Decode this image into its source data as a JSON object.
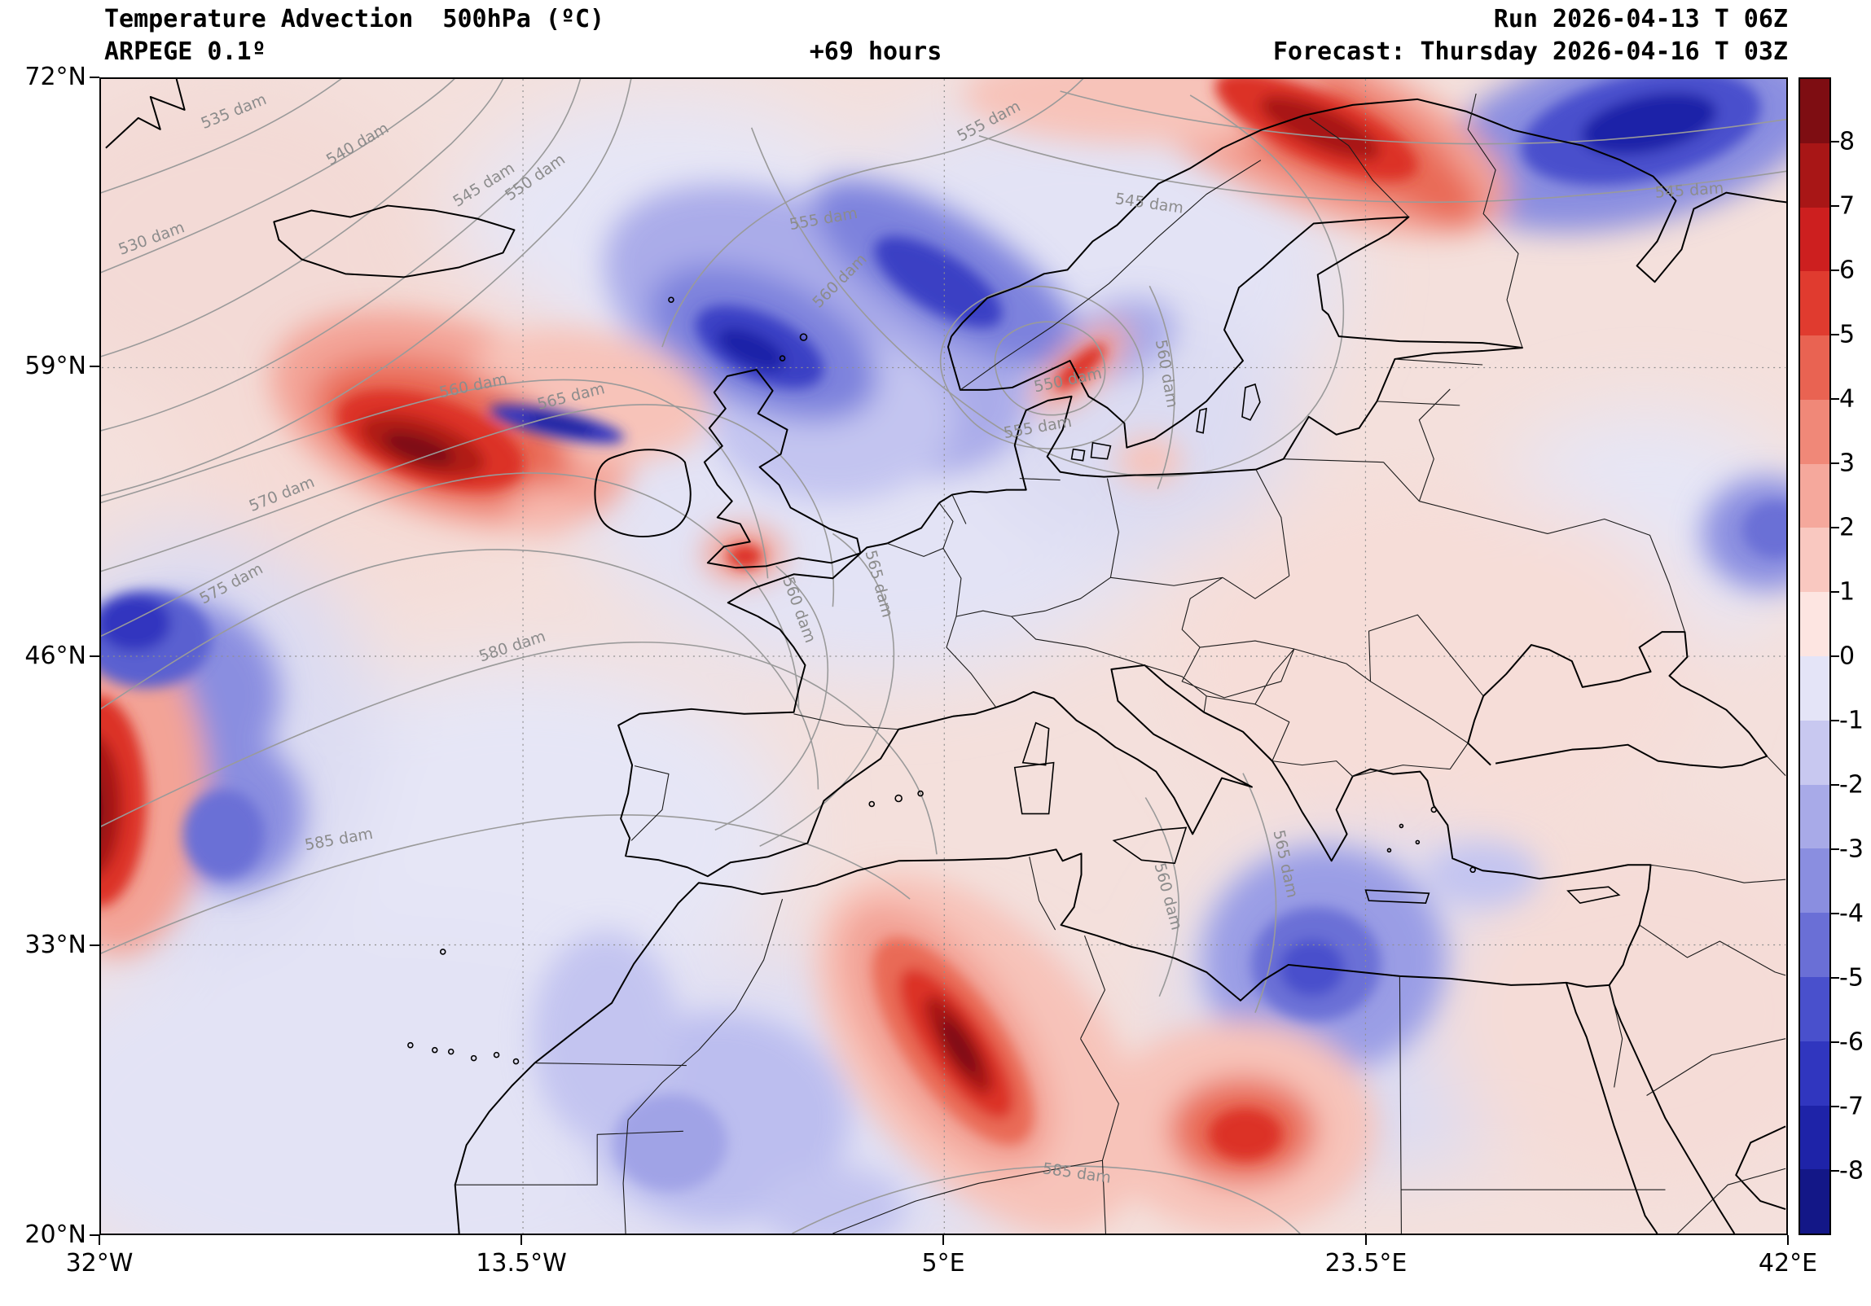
{
  "header": {
    "title": "Temperature Advection  500hPa (ºC)",
    "model": "ARPEGE 0.1º",
    "forecast_hour": "+69 hours",
    "run": "Run 2026-04-13 T 06Z",
    "forecast": "Forecast: Thursday 2026-04-16 T 03Z"
  },
  "axes": {
    "lat_ticks": [
      "72°N",
      "59°N",
      "46°N",
      "33°N",
      "20°N"
    ],
    "lon_ticks": [
      "32°W",
      "13.5°W",
      "5°E",
      "23.5°E",
      "42°E"
    ]
  },
  "colorbar": {
    "unit": "ºC",
    "tick_labels": [
      "8",
      "7",
      "6",
      "5",
      "4",
      "3",
      "2",
      "1",
      "0",
      "-1",
      "-2",
      "-3",
      "-4",
      "-5",
      "-6",
      "-7",
      "-8"
    ],
    "colors_top_to_bottom": [
      "#7e0d12",
      "#a81616",
      "#cd1f1f",
      "#e03b2f",
      "#e96352",
      "#f08878",
      "#f5a89c",
      "#f9c8c0",
      "#fde5e1",
      "#e4e4f7",
      "#c8c8f0",
      "#a8aae8",
      "#8a8ee0",
      "#6a6fd6",
      "#4950cc",
      "#3036bf",
      "#1e23a8",
      "#131787"
    ]
  },
  "contour_labels": [
    "530 dam",
    "535 dam",
    "540 dam",
    "545 dam",
    "550 dam",
    "555 dam",
    "555 dam",
    "560 dam",
    "545 dam",
    "545 dam",
    "550 dam",
    "555 dam",
    "560 dam",
    "560 dam",
    "565 dam",
    "570 dam",
    "575 dam",
    "580 dam",
    "560 dam",
    "565 dam",
    "585 dam",
    "585 dam",
    "565 dam",
    "560 dam"
  ],
  "chart_data": {
    "type": "heatmap",
    "title": "Temperature Advection 500hPa (ºC)",
    "model": "ARPEGE 0.1º",
    "run": "2026-04-13 06Z",
    "valid": "Thursday 2026-04-16 03Z",
    "lead_hours": 69,
    "lon_range_deg": [
      -32,
      42
    ],
    "lat_range_deg": [
      20,
      72
    ],
    "color_scale_range_c": [
      -8,
      8
    ],
    "geopotential_contour_levels_dam": [
      530,
      535,
      540,
      545,
      550,
      555,
      560,
      565,
      570,
      575,
      580,
      585
    ],
    "features": [
      {
        "kind": "warm_advection_max",
        "location": "Atlantic southwest of Ireland",
        "approx_lon": -18,
        "approx_lat": 55,
        "peak_c": 8
      },
      {
        "kind": "warm_advection_max",
        "location": "northern Scandinavia to Kola Peninsula",
        "approx_lon": 20,
        "approx_lat": 70,
        "peak_c": 8
      },
      {
        "kind": "warm_advection_max",
        "location": "western map edge off Morocco",
        "approx_lon": -32,
        "approx_lat": 39,
        "peak_c": 7
      },
      {
        "kind": "warm_advection_max",
        "location": "central Algeria",
        "approx_lon": 3,
        "approx_lat": 28,
        "peak_c": 7
      },
      {
        "kind": "warm_advection_max",
        "location": "northeast Libya / Egypt",
        "approx_lon": 17,
        "approx_lat": 25,
        "peak_c": 4
      },
      {
        "kind": "cold_advection_max",
        "location": "Scotland and northern North Sea",
        "approx_lon": -4,
        "approx_lat": 60,
        "peak_c": -8
      },
      {
        "kind": "cold_advection_max",
        "location": "far northeastern corner, northwest Russia",
        "approx_lon": 36,
        "approx_lat": 70,
        "peak_c": -7
      },
      {
        "kind": "cold_advection_max",
        "location": "western map edge mid-Atlantic",
        "approx_lon": -30,
        "approx_lat": 47,
        "peak_c": -5
      },
      {
        "kind": "cold_advection_max",
        "location": "eastern Mediterranean / Levant",
        "approx_lon": 21,
        "approx_lat": 33,
        "peak_c": -4
      }
    ]
  }
}
